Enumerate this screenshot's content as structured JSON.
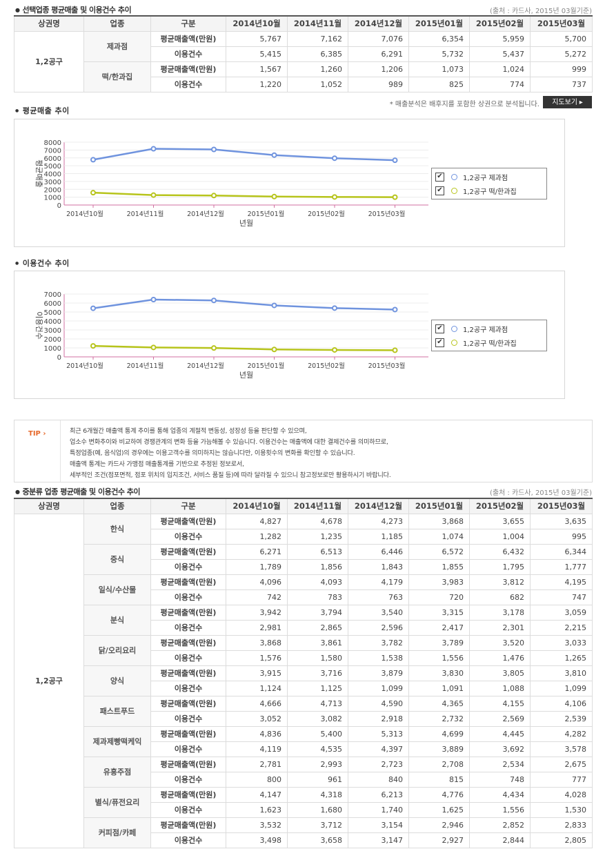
{
  "section1": {
    "title": "선택업종 평균매출 및 이용건수 추이",
    "source": "(출처 : 카드사, 2015년 03월기준)",
    "headers": [
      "상권명",
      "업종",
      "구분",
      "2014년10월",
      "2014년11월",
      "2014년12월",
      "2015년01월",
      "2015년02월",
      "2015년03월"
    ],
    "area": "1,2공구",
    "groups": [
      {
        "industry": "제과점",
        "rows": [
          {
            "kind": "평균매출액(만원)",
            "values": [
              "5,767",
              "7,162",
              "7,076",
              "6,354",
              "5,959",
              "5,700"
            ]
          },
          {
            "kind": "이용건수",
            "values": [
              "5,415",
              "6,385",
              "6,291",
              "5,732",
              "5,437",
              "5,272"
            ]
          }
        ]
      },
      {
        "industry": "떡/한과집",
        "rows": [
          {
            "kind": "평균매출액(만원)",
            "values": [
              "1,567",
              "1,260",
              "1,206",
              "1,073",
              "1,024",
              "999"
            ]
          },
          {
            "kind": "이용건수",
            "values": [
              "1,220",
              "1,052",
              "989",
              "825",
              "774",
              "737"
            ]
          }
        ]
      }
    ]
  },
  "note": "* 매출분석은 배후지를 포함한 상권으로 분석됩니다.",
  "map_button": "지도보기 ▸",
  "chart1_heading": "평균매출 추이",
  "chart2_heading": "이용건수 추이",
  "chart_data": [
    {
      "type": "line",
      "categories": [
        "2014년10월",
        "2014년11월",
        "2014년12월",
        "2015년01월",
        "2015년02월",
        "2015년03월"
      ],
      "ylim": [
        0,
        8000
      ],
      "yticks": [
        "0",
        "1000",
        "2000",
        "3000",
        "4000",
        "5000",
        "6000",
        "7000",
        "8000"
      ],
      "xlabel": "년월",
      "ylabel": "평균매출",
      "legend_position": "right",
      "series": [
        {
          "name": "1,2공구 제과점",
          "color": "#6f93de",
          "values": [
            5767,
            7162,
            7076,
            6354,
            5959,
            5700
          ]
        },
        {
          "name": "1,2공구 떡/한과집",
          "color": "#b7c41b",
          "values": [
            1567,
            1260,
            1206,
            1073,
            1024,
            999
          ]
        }
      ]
    },
    {
      "type": "line",
      "categories": [
        "2014년10월",
        "2014년11월",
        "2014년12월",
        "2015년01월",
        "2015년02월",
        "2015년03월"
      ],
      "ylim": [
        0,
        7000
      ],
      "yticks": [
        "0",
        "1000",
        "2000",
        "3000",
        "4000",
        "5000",
        "6000",
        "7000"
      ],
      "xlabel": "년월",
      "ylabel": "이용건수",
      "legend_position": "right",
      "series": [
        {
          "name": "1,2공구 제과점",
          "color": "#6f93de",
          "values": [
            5415,
            6385,
            6291,
            5732,
            5437,
            5272
          ]
        },
        {
          "name": "1,2공구 떡/한과집",
          "color": "#b7c41b",
          "values": [
            1220,
            1052,
            989,
            825,
            774,
            737
          ]
        }
      ]
    }
  ],
  "tip": {
    "label": "TIP",
    "lines": [
      "최근 6개월간 매출액 통계 추이를 통해 업종의 계절적 변동성, 성장성 등을 판단할 수 있으며,",
      "업소수 변화추이와 비교하여 경쟁관계의 변화 등을 가늠해볼 수 있습니다. 이용건수는 매출액에 대한 결제건수를 의미하므로,",
      "특정업종(예, 음식업)의 경우에는 이용고객수를 의미하지는 않습니다만, 이용횟수의 변화를 확인할 수 있습니다.",
      "매출액 통계는 카드사 가맹점 매출통계를 기반으로 추정된 정보로서,",
      "세부적인 조건(점포면적, 점포 위치의 입지조건, 서비스 품질 등)에 따라 달라질 수 있으니 참고정보로만 활용하시기 바랍니다."
    ]
  },
  "section2": {
    "title": "중분류 업종 평균매출 및 이용건수 추이",
    "source": "(출처 : 카드사, 2015년 03월기준)",
    "headers": [
      "상권명",
      "업종",
      "구분",
      "2014년10월",
      "2014년11월",
      "2014년12월",
      "2015년01월",
      "2015년02월",
      "2015년03월"
    ],
    "area": "1,2공구",
    "groups": [
      {
        "industry": "한식",
        "rows": [
          {
            "kind": "평균매출액(만원)",
            "values": [
              "4,827",
              "4,678",
              "4,273",
              "3,868",
              "3,655",
              "3,635"
            ]
          },
          {
            "kind": "이용건수",
            "values": [
              "1,282",
              "1,235",
              "1,185",
              "1,074",
              "1,004",
              "995"
            ]
          }
        ]
      },
      {
        "industry": "중식",
        "rows": [
          {
            "kind": "평균매출액(만원)",
            "values": [
              "6,271",
              "6,513",
              "6,446",
              "6,572",
              "6,432",
              "6,344"
            ]
          },
          {
            "kind": "이용건수",
            "values": [
              "1,789",
              "1,856",
              "1,843",
              "1,855",
              "1,795",
              "1,777"
            ]
          }
        ]
      },
      {
        "industry": "일식/수산물",
        "rows": [
          {
            "kind": "평균매출액(만원)",
            "values": [
              "4,096",
              "4,093",
              "4,179",
              "3,983",
              "3,812",
              "4,195"
            ]
          },
          {
            "kind": "이용건수",
            "values": [
              "742",
              "783",
              "763",
              "720",
              "682",
              "747"
            ]
          }
        ]
      },
      {
        "industry": "분식",
        "rows": [
          {
            "kind": "평균매출액(만원)",
            "values": [
              "3,942",
              "3,794",
              "3,540",
              "3,315",
              "3,178",
              "3,059"
            ]
          },
          {
            "kind": "이용건수",
            "values": [
              "2,981",
              "2,865",
              "2,596",
              "2,417",
              "2,301",
              "2,215"
            ]
          }
        ]
      },
      {
        "industry": "닭/오리요리",
        "rows": [
          {
            "kind": "평균매출액(만원)",
            "values": [
              "3,868",
              "3,861",
              "3,782",
              "3,789",
              "3,520",
              "3,033"
            ]
          },
          {
            "kind": "이용건수",
            "values": [
              "1,576",
              "1,580",
              "1,538",
              "1,556",
              "1,476",
              "1,265"
            ]
          }
        ]
      },
      {
        "industry": "양식",
        "rows": [
          {
            "kind": "평균매출액(만원)",
            "values": [
              "3,915",
              "3,716",
              "3,879",
              "3,830",
              "3,805",
              "3,810"
            ]
          },
          {
            "kind": "이용건수",
            "values": [
              "1,124",
              "1,125",
              "1,099",
              "1,091",
              "1,088",
              "1,099"
            ]
          }
        ]
      },
      {
        "industry": "패스트푸드",
        "rows": [
          {
            "kind": "평균매출액(만원)",
            "values": [
              "4,666",
              "4,713",
              "4,590",
              "4,365",
              "4,155",
              "4,106"
            ]
          },
          {
            "kind": "이용건수",
            "values": [
              "3,052",
              "3,082",
              "2,918",
              "2,732",
              "2,569",
              "2,539"
            ]
          }
        ]
      },
      {
        "industry": "제과제빵떡케익",
        "rows": [
          {
            "kind": "평균매출액(만원)",
            "values": [
              "4,836",
              "5,400",
              "5,313",
              "4,699",
              "4,445",
              "4,282"
            ]
          },
          {
            "kind": "이용건수",
            "values": [
              "4,119",
              "4,535",
              "4,397",
              "3,889",
              "3,692",
              "3,578"
            ]
          }
        ]
      },
      {
        "industry": "유흥주점",
        "rows": [
          {
            "kind": "평균매출액(만원)",
            "values": [
              "2,781",
              "2,993",
              "2,723",
              "2,708",
              "2,534",
              "2,675"
            ]
          },
          {
            "kind": "이용건수",
            "values": [
              "800",
              "961",
              "840",
              "815",
              "748",
              "777"
            ]
          }
        ]
      },
      {
        "industry": "별식/퓨전요리",
        "rows": [
          {
            "kind": "평균매출액(만원)",
            "values": [
              "4,147",
              "4,318",
              "6,213",
              "4,776",
              "4,434",
              "4,028"
            ]
          },
          {
            "kind": "이용건수",
            "values": [
              "1,623",
              "1,680",
              "1,740",
              "1,625",
              "1,556",
              "1,530"
            ]
          }
        ]
      },
      {
        "industry": "커피점/카페",
        "rows": [
          {
            "kind": "평균매출액(만원)",
            "values": [
              "3,532",
              "3,712",
              "3,154",
              "2,946",
              "2,852",
              "2,833"
            ]
          },
          {
            "kind": "이용건수",
            "values": [
              "3,498",
              "3,658",
              "3,147",
              "2,927",
              "2,844",
              "2,805"
            ]
          }
        ]
      }
    ]
  }
}
